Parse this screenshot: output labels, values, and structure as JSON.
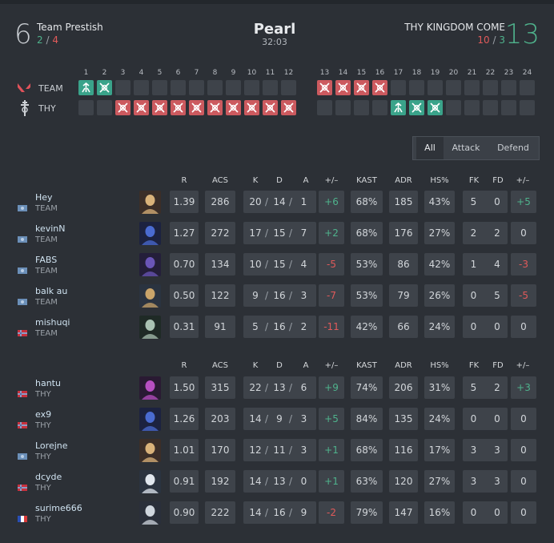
{
  "match": {
    "map": "Pearl",
    "duration": "32:03",
    "team1": {
      "name": "Team Prestish",
      "score": "6",
      "half_a": "2",
      "half_b": "4"
    },
    "team2": {
      "name": "THY KINGDOM COME",
      "score": "13",
      "half_a": "10",
      "half_b": "3"
    }
  },
  "round_labels": {
    "team1": "TEAM",
    "team2": "THY",
    "first_half": [
      "1",
      "2",
      "3",
      "4",
      "5",
      "6",
      "7",
      "8",
      "9",
      "10",
      "11",
      "12"
    ],
    "second_half": [
      "13",
      "14",
      "15",
      "16",
      "17",
      "18",
      "19",
      "20",
      "21",
      "22",
      "23",
      "24"
    ]
  },
  "rounds": {
    "team1_first": [
      "defuse-win",
      "elim-win",
      "",
      "",
      "",
      "",
      "",
      "",
      "",
      "",
      "",
      ""
    ],
    "team2_first": [
      "",
      "",
      "elim-loss",
      "elim-loss",
      "elim-loss",
      "elim-loss",
      "elim-loss",
      "elim-loss",
      "elim-loss",
      "elim-loss",
      "elim-loss",
      "elim-loss"
    ],
    "team1_second": [
      "elim-loss",
      "elim-loss",
      "elim-loss",
      "elim-loss",
      "",
      "",
      "",
      "",
      "",
      "",
      "",
      ""
    ],
    "team2_second": [
      "",
      "",
      "",
      "",
      "defuse-win",
      "elim-win",
      "elim-win",
      "",
      "",
      "",
      "",
      ""
    ]
  },
  "tabs": [
    "All",
    "Attack",
    "Defend"
  ],
  "columns": [
    "R",
    "ACS",
    "K",
    "D",
    "A",
    "+/–",
    "KAST",
    "ADR",
    "HS%",
    "FK",
    "FD",
    "+/–"
  ],
  "colors": {
    "positive": "#4fb28c",
    "negative": "#e05a5a",
    "round_green": "#3aa38a",
    "round_red": "#cc5a5f"
  },
  "team1_players": [
    {
      "name": "Hey",
      "team": "TEAM",
      "flag": "eu-flag",
      "agent": "chamber",
      "r": "1.39",
      "acs": "286",
      "k": "20",
      "d": "14",
      "a": "1",
      "pm": "+6",
      "kast": "68%",
      "adr": "185",
      "hs": "43%",
      "fk": "5",
      "fd": "0",
      "fpm": "+5"
    },
    {
      "name": "kevinN",
      "team": "TEAM",
      "flag": "eu-flag",
      "agent": "yoru",
      "r": "1.27",
      "acs": "272",
      "k": "17",
      "d": "15",
      "a": "7",
      "pm": "+2",
      "kast": "68%",
      "adr": "176",
      "hs": "27%",
      "fk": "2",
      "fd": "2",
      "fpm": "0"
    },
    {
      "name": "FABS",
      "team": "TEAM",
      "flag": "eu-flag",
      "agent": "omen",
      "r": "0.70",
      "acs": "134",
      "k": "10",
      "d": "15",
      "a": "4",
      "pm": "-5",
      "kast": "53%",
      "adr": "86",
      "hs": "42%",
      "fk": "1",
      "fd": "4",
      "fpm": "-3"
    },
    {
      "name": "balk au",
      "team": "TEAM",
      "flag": "eu-flag",
      "agent": "fade",
      "r": "0.50",
      "acs": "122",
      "k": "9",
      "d": "16",
      "a": "3",
      "pm": "-7",
      "kast": "53%",
      "adr": "79",
      "hs": "26%",
      "fk": "0",
      "fd": "5",
      "fpm": "-5"
    },
    {
      "name": "mishuqi",
      "team": "TEAM",
      "flag": "no-flag",
      "agent": "viper",
      "r": "0.31",
      "acs": "91",
      "k": "5",
      "d": "16",
      "a": "2",
      "pm": "-11",
      "kast": "42%",
      "adr": "66",
      "hs": "24%",
      "fk": "0",
      "fd": "0",
      "fpm": "0"
    }
  ],
  "team2_players": [
    {
      "name": "hantu",
      "team": "THY",
      "flag": "no-flag",
      "agent": "reyna",
      "r": "1.50",
      "acs": "315",
      "k": "22",
      "d": "13",
      "a": "6",
      "pm": "+9",
      "kast": "74%",
      "adr": "206",
      "hs": "31%",
      "fk": "5",
      "fd": "2",
      "fpm": "+3"
    },
    {
      "name": "ex9",
      "team": "THY",
      "flag": "no-flag",
      "agent": "yoru",
      "r": "1.26",
      "acs": "203",
      "k": "14",
      "d": "9",
      "a": "3",
      "pm": "+5",
      "kast": "84%",
      "adr": "135",
      "hs": "24%",
      "fk": "0",
      "fd": "0",
      "fpm": "0"
    },
    {
      "name": "Lorejne",
      "team": "THY",
      "flag": "eu-flag",
      "agent": "chamber",
      "r": "1.01",
      "acs": "170",
      "k": "12",
      "d": "11",
      "a": "3",
      "pm": "+1",
      "kast": "68%",
      "adr": "116",
      "hs": "17%",
      "fk": "3",
      "fd": "3",
      "fpm": "0"
    },
    {
      "name": "dcyde",
      "team": "THY",
      "flag": "no-flag",
      "agent": "sage",
      "r": "0.91",
      "acs": "192",
      "k": "14",
      "d": "13",
      "a": "0",
      "pm": "+1",
      "kast": "63%",
      "adr": "120",
      "hs": "27%",
      "fk": "3",
      "fd": "3",
      "fpm": "0"
    },
    {
      "name": "surime666",
      "team": "THY",
      "flag": "fr-flag",
      "agent": "harbor",
      "r": "0.90",
      "acs": "222",
      "k": "14",
      "d": "16",
      "a": "9",
      "pm": "-2",
      "kast": "79%",
      "adr": "147",
      "hs": "16%",
      "fk": "0",
      "fd": "0",
      "fpm": "0"
    }
  ]
}
